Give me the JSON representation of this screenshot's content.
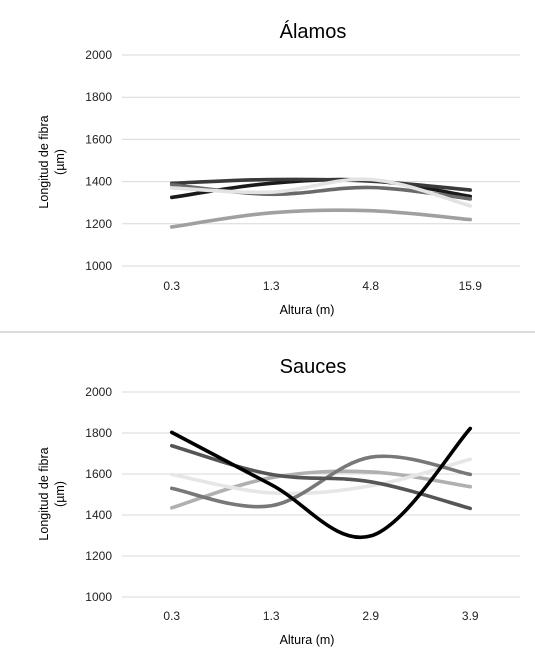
{
  "chart_data": [
    {
      "type": "line",
      "title": "Álamos",
      "xlabel": "Altura (m)",
      "ylabel": "Longitud de fibra (µm)",
      "categories": [
        "0.3",
        "1.3",
        "4.8",
        "15.9"
      ],
      "ylim": [
        1000,
        2000
      ],
      "yticks": [
        1000,
        1200,
        1400,
        1600,
        1800,
        2000
      ],
      "grid": true,
      "smooth": true,
      "series": [
        {
          "color": "#1a1a1a",
          "values": [
            1325,
            1392,
            1405,
            1330
          ]
        },
        {
          "color": "#3a3a3a",
          "values": [
            1392,
            1410,
            1402,
            1360
          ]
        },
        {
          "color": "#6a6a6a",
          "values": [
            1385,
            1340,
            1372,
            1318
          ]
        },
        {
          "color": "#a0a0a0",
          "values": [
            1185,
            1252,
            1262,
            1220
          ]
        },
        {
          "color": "#e3e3e3",
          "values": [
            1370,
            1350,
            1410,
            1285
          ]
        }
      ]
    },
    {
      "type": "line",
      "title": "Sauces",
      "xlabel": "Altura (m)",
      "ylabel": "Longitud de fibra (µm)",
      "categories": [
        "0.3",
        "1.3",
        "2.9",
        "3.9"
      ],
      "ylim": [
        1000,
        2000
      ],
      "yticks": [
        1000,
        1200,
        1400,
        1600,
        1800,
        2000
      ],
      "grid": true,
      "smooth": true,
      "series": [
        {
          "color": "#b0b0b0",
          "values": [
            1435,
            1582,
            1610,
            1538
          ]
        },
        {
          "color": "#e6e6e6",
          "values": [
            1598,
            1508,
            1542,
            1672
          ]
        },
        {
          "color": "#787878",
          "values": [
            1530,
            1445,
            1682,
            1598
          ]
        },
        {
          "color": "#555555",
          "values": [
            1738,
            1598,
            1562,
            1432
          ]
        },
        {
          "color": "#000000",
          "values": [
            1803,
            1548,
            1298,
            1822
          ]
        }
      ]
    }
  ]
}
